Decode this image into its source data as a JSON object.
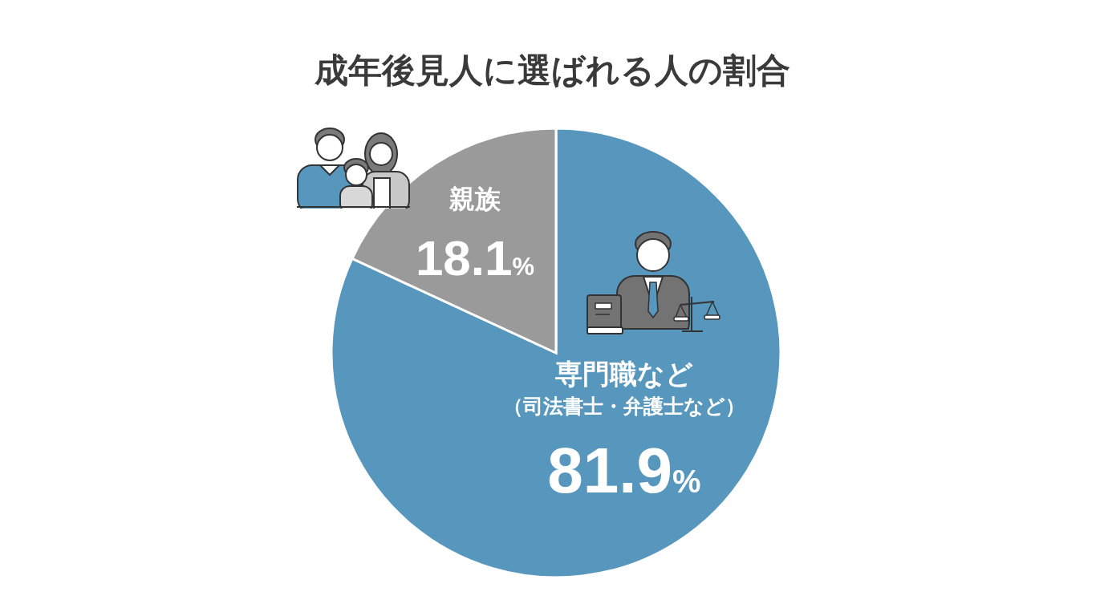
{
  "chart_data": {
    "type": "pie",
    "title": "成年後見人に選ばれる人の割合",
    "categories": [
      "専門職など（司法書士・弁護士など）",
      "親族"
    ],
    "values": [
      81.9,
      18.1
    ],
    "colors": [
      "#5797be",
      "#9a9a9a"
    ],
    "value_labels": [
      "81.9%",
      "18.1%"
    ]
  }
}
